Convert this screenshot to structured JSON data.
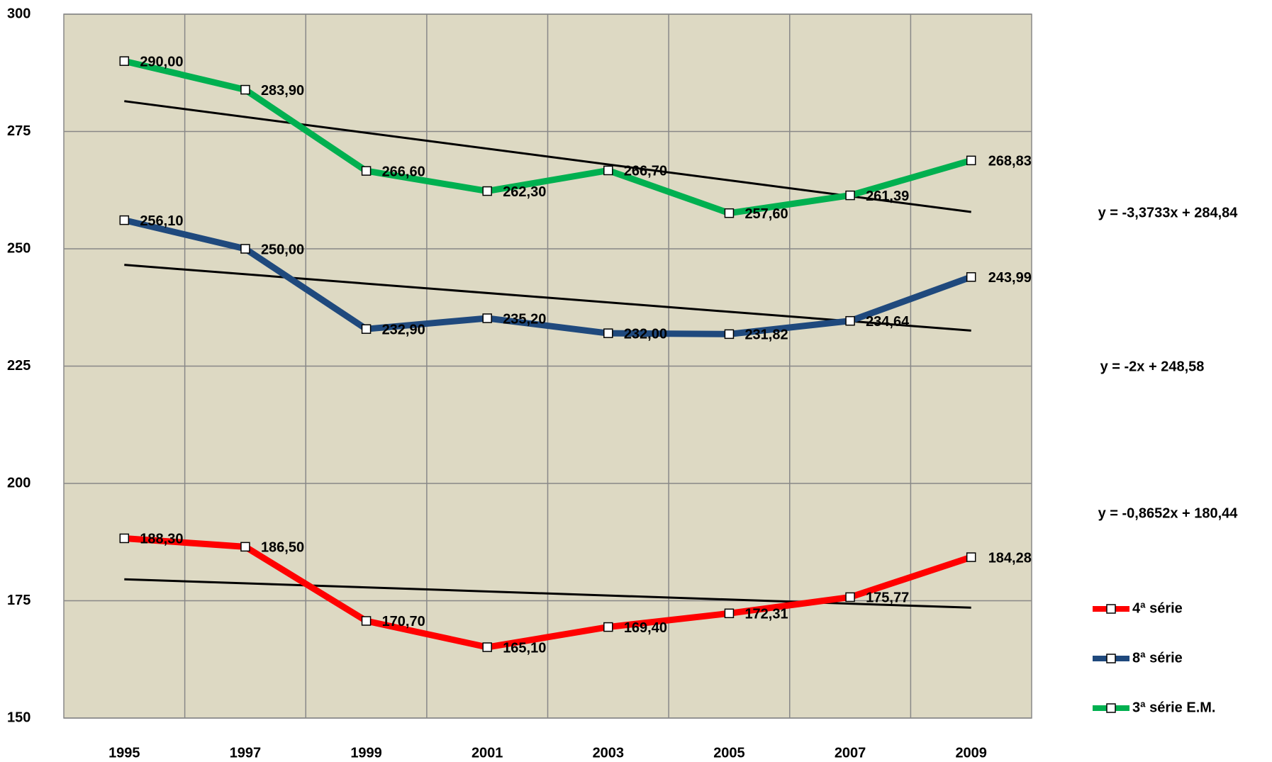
{
  "chart_data": {
    "type": "line",
    "categories": [
      "1995",
      "1997",
      "1999",
      "2001",
      "2003",
      "2005",
      "2007",
      "2009"
    ],
    "ylim": [
      150,
      300
    ],
    "yticks": [
      150,
      175,
      200,
      225,
      250,
      275,
      300
    ],
    "grid": true,
    "legend": "right",
    "series": [
      {
        "name": "4ª série",
        "color": "#ff0000",
        "values": [
          188.3,
          186.5,
          170.7,
          165.1,
          169.4,
          172.31,
          175.77,
          184.28
        ],
        "value_labels": [
          "188,30",
          "186,50",
          "170,70",
          "165,10",
          "169,40",
          "172,31",
          "175,77",
          "184,28"
        ],
        "trendline": {
          "label": "y = -0,8652x + 180,44",
          "slope": -0.8652,
          "intercept": 180.44
        }
      },
      {
        "name": "8ª série",
        "color": "#1f497d",
        "values": [
          256.1,
          250,
          232.9,
          235.2,
          232,
          231.82,
          234.64,
          243.99
        ],
        "value_labels": [
          "256,10",
          "250,00",
          "232,90",
          "235,20",
          "232,00",
          "231,82",
          "234,64",
          "243,99"
        ],
        "trendline": {
          "label": "y = -2x + 248,58",
          "slope": -2,
          "intercept": 248.58
        }
      },
      {
        "name": "3ª série E.M.",
        "color": "#00b050",
        "values": [
          290,
          283.9,
          266.6,
          262.3,
          266.7,
          257.6,
          261.39,
          268.83
        ],
        "value_labels": [
          "290,00",
          "283,90",
          "266,60",
          "262,30",
          "266,70",
          "257,60",
          "261,39",
          "268,83"
        ],
        "trendline": {
          "label": "y = -3,3733x + 284,84",
          "slope": -3.3733,
          "intercept": 284.84
        }
      }
    ]
  }
}
